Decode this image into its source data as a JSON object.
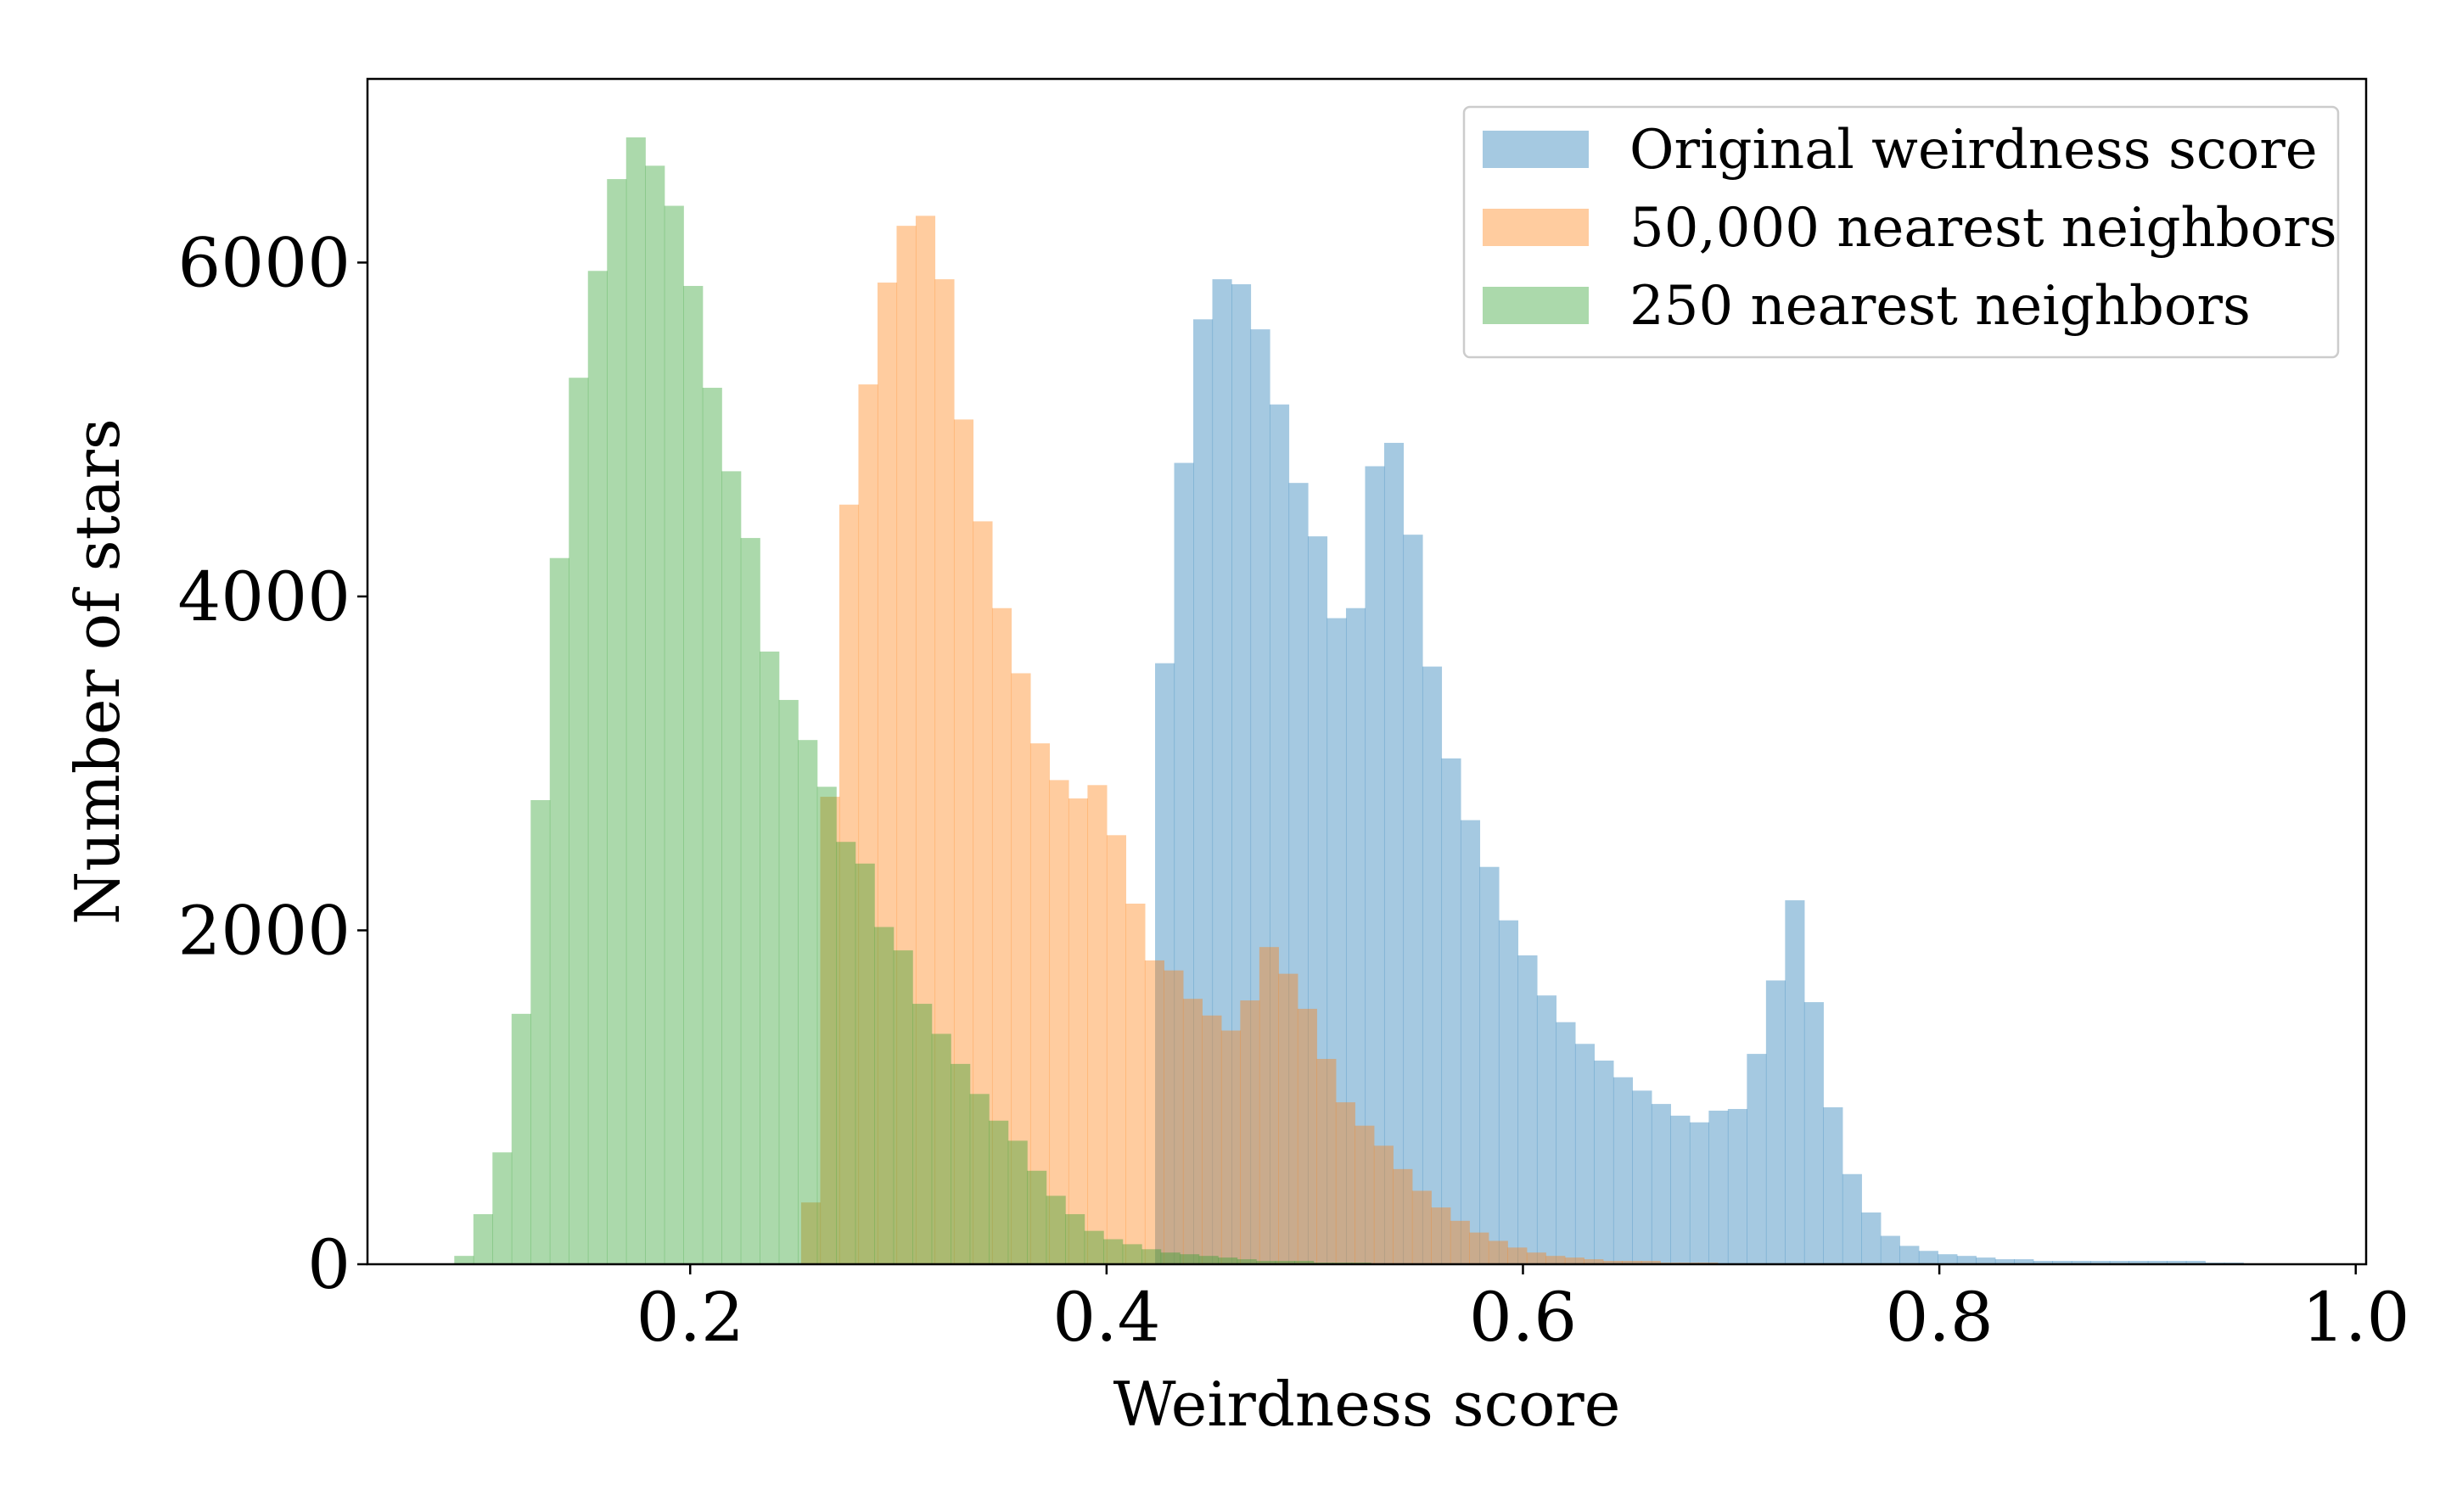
{
  "chart_data": {
    "type": "histogram",
    "xlabel": "Weirdness score",
    "ylabel": "Number of stars",
    "xlim": [
      0.045,
      1.005
    ],
    "ylim": [
      0,
      7100
    ],
    "x_ticks": [
      0.2,
      0.4,
      0.6,
      0.8,
      1.0
    ],
    "x_tick_labels": [
      "0.2",
      "0.4",
      "0.6",
      "0.8",
      "1.0"
    ],
    "y_ticks": [
      0,
      2000,
      4000,
      6000
    ],
    "y_tick_labels": [
      "0",
      "2000",
      "4000",
      "6000"
    ],
    "grid": false,
    "legend_position": "top-right",
    "legend_labels": [
      "Original weirdness score",
      "50,000 nearest neighbors",
      "250 nearest neighbors"
    ],
    "bar_alpha": 0.4,
    "series": [
      {
        "name": "Original weirdness score",
        "color": "#1f77b4",
        "bin_start": 0.4233,
        "bin_width": 0.00917,
        "values": [
          3600,
          4800,
          5660,
          5900,
          5870,
          5600,
          5150,
          4680,
          4360,
          3870,
          3930,
          4780,
          4920,
          4370,
          3580,
          3030,
          2660,
          2380,
          2060,
          1850,
          1610,
          1450,
          1320,
          1220,
          1120,
          1040,
          960,
          890,
          850,
          920,
          930,
          1260,
          1700,
          2180,
          1570,
          940,
          540,
          310,
          170,
          110,
          80,
          60,
          50,
          40,
          30,
          30,
          20,
          20,
          20,
          20,
          20,
          20,
          20,
          20,
          20,
          10,
          10
        ]
      },
      {
        "name": "50,000 nearest neighbors",
        "color": "#ff7f0e",
        "bin_start": 0.2533,
        "bin_width": 0.00917,
        "values": [
          370,
          2800,
          4550,
          5270,
          5880,
          6220,
          6280,
          5900,
          5060,
          4450,
          3930,
          3540,
          3120,
          2900,
          2790,
          2870,
          2570,
          2160,
          1820,
          1760,
          1590,
          1490,
          1400,
          1580,
          1900,
          1740,
          1530,
          1230,
          970,
          830,
          710,
          570,
          440,
          340,
          260,
          190,
          140,
          100,
          70,
          50,
          40,
          30,
          20,
          20,
          20,
          10,
          10,
          10
        ]
      },
      {
        "name": "250 nearest neighbors",
        "color": "#2ca02c",
        "bin_start": 0.0867,
        "bin_width": 0.00917,
        "values": [
          50,
          300,
          670,
          1500,
          2780,
          4230,
          5310,
          5950,
          6500,
          6750,
          6580,
          6340,
          5860,
          5250,
          4750,
          4350,
          3670,
          3380,
          3140,
          2860,
          2530,
          2400,
          2020,
          1880,
          1560,
          1380,
          1200,
          1020,
          860,
          740,
          560,
          410,
          300,
          200,
          150,
          120,
          90,
          70,
          60,
          50,
          40,
          30,
          20,
          20,
          20,
          10,
          10,
          10
        ]
      }
    ]
  }
}
